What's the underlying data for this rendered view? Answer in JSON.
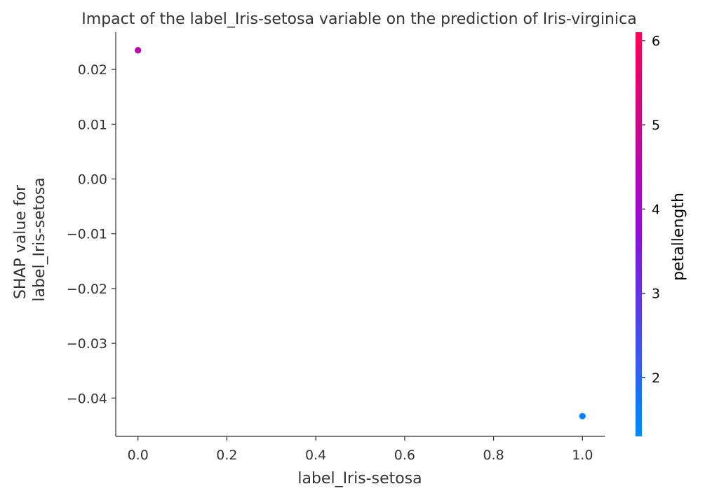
{
  "chart_data": {
    "type": "scatter",
    "title": "Impact of the label_Iris-setosa variable on the prediction of Iris-virginica",
    "xlabel": "label_Iris-setosa",
    "ylabel_line1": "SHAP value for",
    "ylabel_line2": "label_Iris-setosa",
    "xlim": [
      -0.05,
      1.05
    ],
    "ylim": [
      -0.047,
      0.0268
    ],
    "x_ticks": [
      0.0,
      0.2,
      0.4,
      0.6,
      0.8,
      1.0
    ],
    "x_tick_labels": [
      "0.0",
      "0.2",
      "0.4",
      "0.6",
      "0.8",
      "1.0"
    ],
    "y_ticks": [
      0.02,
      0.01,
      0.0,
      -0.01,
      -0.02,
      -0.03,
      -0.04
    ],
    "y_tick_labels": [
      "0.02",
      "0.01",
      "0.00",
      "−0.01",
      "−0.02",
      "−0.03",
      "−0.04"
    ],
    "grid": false,
    "points": [
      {
        "x": 0.0,
        "y": 0.0235,
        "color_value": 5.5
      },
      {
        "x": 0.0,
        "y": 0.0235,
        "color_value": 5.1
      },
      {
        "x": 0.0,
        "y": 0.0235,
        "color_value": 4.5
      },
      {
        "x": 1.0,
        "y": -0.0433,
        "color_value": 1.4
      },
      {
        "x": 1.0,
        "y": -0.0433,
        "color_value": 1.5
      }
    ],
    "colorbar": {
      "label": "petallength",
      "range": [
        1.3,
        6.1
      ],
      "ticks": [
        2,
        3,
        4,
        5,
        6
      ],
      "tick_labels": [
        "2",
        "3",
        "4",
        "5",
        "6"
      ],
      "color_low": "#008afb",
      "color_mid": "#8d0fd8",
      "color_high": "#ff0052"
    },
    "axis_color": "#333333"
  }
}
